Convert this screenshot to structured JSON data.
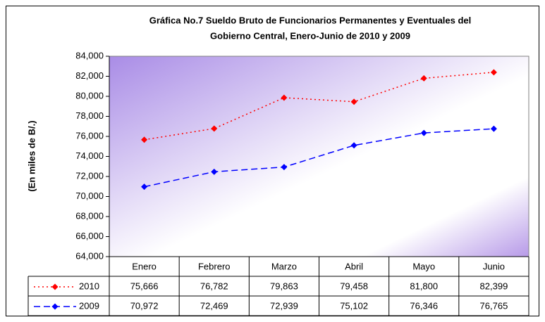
{
  "chart_data": {
    "type": "line",
    "title": [
      "Gráfica No.7 Sueldo Bruto de Funcionarios Permanentes y Eventuales del",
      "Gobierno Central, Enero-Junio de 2010 y 2009"
    ],
    "y_label": "(En miles de B/.)",
    "categories": [
      "Enero",
      "Febrero",
      "Marzo",
      "Abril",
      "Mayo",
      "Junio"
    ],
    "series": [
      {
        "name": "2010",
        "color": "#ff0000",
        "line_style": "dotted",
        "marker": "diamond",
        "values": [
          75666,
          76782,
          79863,
          79458,
          81800,
          82399
        ],
        "value_labels": [
          "75,666",
          "76,782",
          "79,863",
          "79,458",
          "81,800",
          "82,399"
        ]
      },
      {
        "name": "2009",
        "color": "#0000ff",
        "line_style": "dashed",
        "marker": "diamond",
        "values": [
          70972,
          72469,
          72939,
          75102,
          76346,
          76765
        ],
        "value_labels": [
          "70,972",
          "72,469",
          "72,939",
          "75,102",
          "76,346",
          "76,765"
        ]
      }
    ],
    "ylim": [
      64000,
      84000
    ],
    "yticks": [
      {
        "value": 64000,
        "label": "64,000"
      },
      {
        "value": 66000,
        "label": "66,000"
      },
      {
        "value": 68000,
        "label": "68,000"
      },
      {
        "value": 70000,
        "label": "70,000"
      },
      {
        "value": 72000,
        "label": "72,000"
      },
      {
        "value": 74000,
        "label": "74,000"
      },
      {
        "value": 76000,
        "label": "76,000"
      },
      {
        "value": 78000,
        "label": "78,000"
      },
      {
        "value": 80000,
        "label": "80,000"
      },
      {
        "value": 82000,
        "label": "82,000"
      },
      {
        "value": 84000,
        "label": "84,000"
      }
    ],
    "grid": false,
    "data_table": true
  }
}
